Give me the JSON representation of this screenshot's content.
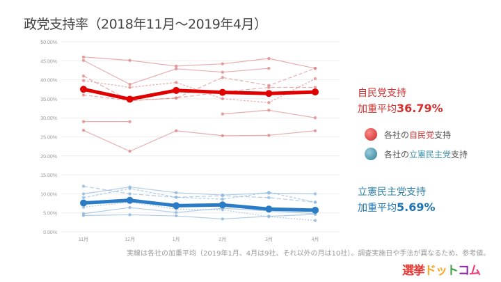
{
  "title": "政党支持率（2018年11月〜2019年4月）",
  "ldp": {
    "label": "自民党支持",
    "avg_prefix": "加重平均",
    "avg_value": "36.79%",
    "color": "#e00000"
  },
  "cdp": {
    "label": "立憲民主党支持",
    "avg_prefix": "加重平均",
    "avg_value": "5.69%",
    "color": "#2a7cc7"
  },
  "legend": [
    {
      "prefix": "各社の",
      "party": "自民党",
      "suffix": "支持",
      "color": "#d32f2f"
    },
    {
      "prefix": "各社の",
      "party": "立憲民主党",
      "suffix": "支持",
      "color": "#3a8fa8"
    }
  ],
  "note": "実線は各社の加重平均（2019年1月、4月は9社、それ以外の月は10社）。調査実施日や手法が異なるため、参考値。",
  "logo": {
    "parts": [
      "選挙",
      "ド",
      "ッ",
      "ト",
      "コ",
      "ム"
    ],
    "colors": [
      "#e53935",
      "#f9a825",
      "#f9a825",
      "#43a047",
      "#8e24aa",
      "#ec407a"
    ]
  },
  "chart_data": {
    "type": "line",
    "title": "政党支持率（2018年11月〜2019年4月）",
    "categories": [
      "11月",
      "12月",
      "1月",
      "2月",
      "3月",
      "4月"
    ],
    "ylim": [
      0,
      50
    ],
    "yticks": [
      "0.00%",
      "5.00%",
      "10.00%",
      "15.00%",
      "20.00%",
      "25.00%",
      "30.00%",
      "35.00%",
      "40.00%",
      "45.00%",
      "50.00%"
    ],
    "grid": true,
    "series": [
      {
        "name": "自民党支持 加重平均",
        "group": "ldp",
        "main": true,
        "values": [
          37.5,
          34.9,
          37.2,
          36.7,
          36.4,
          36.8
        ]
      },
      {
        "name": "自民党 各社1",
        "group": "ldp",
        "dash": "",
        "values": [
          46.0,
          45.1,
          43.6,
          44.2,
          45.6,
          43.0
        ]
      },
      {
        "name": "自民党 各社2",
        "group": "ldp",
        "dash": "",
        "values": [
          45.1,
          38.8,
          42.9,
          42.0,
          43.0,
          null
        ]
      },
      {
        "name": "自民党 各社3",
        "group": "ldp",
        "dash": "6,3",
        "values": [
          41.0,
          34.5,
          35.2,
          36.8,
          38.0,
          38.0
        ]
      },
      {
        "name": "自民党 各社4",
        "group": "ldp",
        "dash": "3,2",
        "values": [
          39.8,
          38.0,
          39.3,
          35.0,
          34.0,
          40.3
        ]
      },
      {
        "name": "自民党 各社5",
        "group": "ldp",
        "dash": "5,3",
        "values": [
          36.0,
          34.5,
          35.2,
          40.6,
          38.5,
          43.0
        ]
      },
      {
        "name": "自民党 各社6",
        "group": "ldp",
        "dash": "",
        "values": [
          29.0,
          29.0,
          null,
          31.0,
          32.0,
          30.0
        ]
      },
      {
        "name": "自民党 各社7",
        "group": "ldp",
        "dash": "",
        "values": [
          26.7,
          21.2,
          26.6,
          25.3,
          25.4,
          26.6
        ]
      },
      {
        "name": "立憲民主党支持 加重平均",
        "group": "cdp",
        "main": true,
        "values": [
          7.6,
          8.3,
          6.9,
          7.1,
          6.0,
          5.7
        ]
      },
      {
        "name": "立憲 各社1",
        "group": "cdp",
        "dash": "6,3",
        "values": [
          12.0,
          10.0,
          9.1,
          9.5,
          9.0,
          7.8
        ]
      },
      {
        "name": "立憲 各社2",
        "group": "cdp",
        "dash": "4,2",
        "values": [
          9.0,
          11.4,
          9.1,
          8.6,
          10.4,
          7.8
        ]
      },
      {
        "name": "立憲 各社3",
        "group": "cdp",
        "dash": "",
        "values": [
          10.0,
          11.8,
          10.3,
          9.7,
          10.2,
          10.0
        ]
      },
      {
        "name": "立憲 各社4",
        "group": "cdp",
        "dash": "",
        "values": [
          4.8,
          6.4,
          5.1,
          6.2,
          5.5,
          4.8
        ]
      },
      {
        "name": "立憲 各社5",
        "group": "cdp",
        "dash": "",
        "values": [
          4.3,
          4.5,
          4.2,
          3.4,
          4.1,
          4.6
        ]
      },
      {
        "name": "立憲 各社6",
        "group": "cdp",
        "dash": "2,2",
        "values": [
          6.5,
          7.8,
          6.0,
          5.8,
          4.0,
          3.0
        ]
      }
    ]
  }
}
